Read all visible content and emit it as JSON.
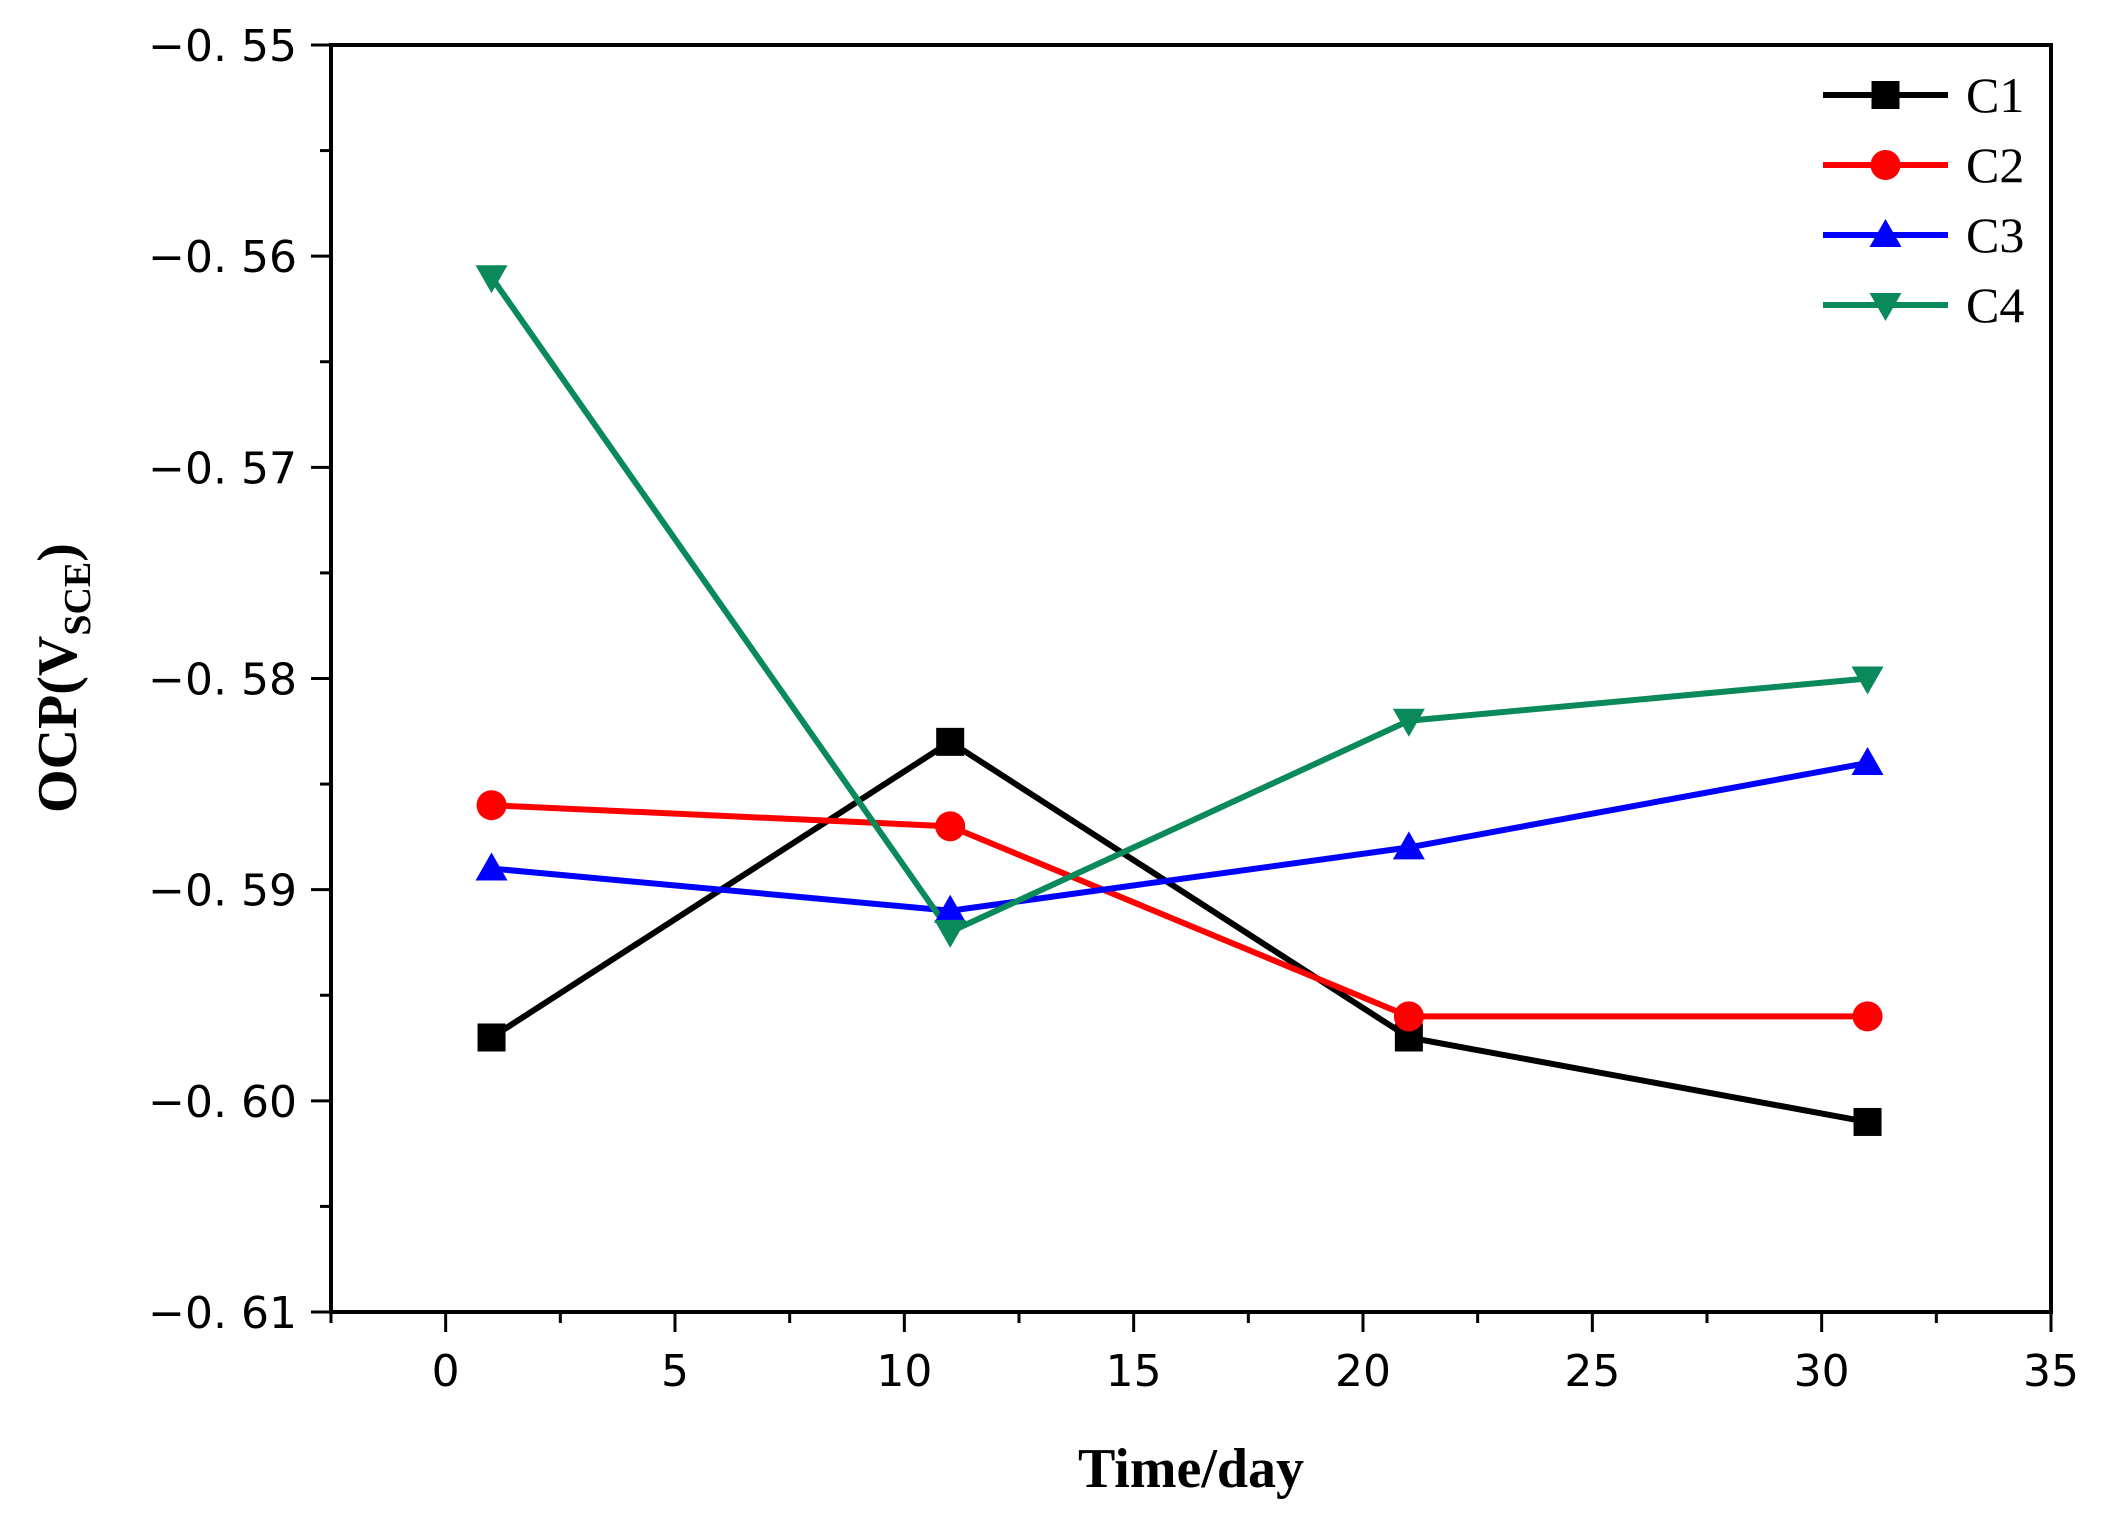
{
  "chart_data": {
    "type": "line",
    "title": "",
    "xlabel": "Time/day",
    "ylabel": {
      "main": "OCP(V",
      "sub": "SCE",
      "close": ")"
    },
    "xlim": [
      -2.5,
      35
    ],
    "ylim": [
      -0.61,
      -0.55
    ],
    "xticks": [
      0,
      5,
      10,
      15,
      20,
      25,
      30,
      35
    ],
    "yticks": [
      -0.61,
      -0.6,
      -0.59,
      -0.58,
      -0.57,
      -0.56,
      -0.55
    ],
    "ytick_labels": [
      "−0. 61",
      "−0. 60",
      "−0. 59",
      "−0. 58",
      "−0. 57",
      "−0. 56",
      "−0. 55"
    ],
    "x": [
      1,
      11,
      21,
      31
    ],
    "series": [
      {
        "name": "C1",
        "color": "#000000",
        "marker": "square",
        "values": [
          -0.597,
          -0.583,
          -0.597,
          -0.601
        ]
      },
      {
        "name": "C2",
        "color": "#ff0000",
        "marker": "circle",
        "values": [
          -0.586,
          -0.587,
          -0.596,
          -0.596
        ]
      },
      {
        "name": "C3",
        "color": "#0000ff",
        "marker": "triangle-up",
        "values": [
          -0.589,
          -0.591,
          -0.588,
          -0.584
        ]
      },
      {
        "name": "C4",
        "color": "#0a8a5a",
        "marker": "triangle-down",
        "values": [
          -0.561,
          -0.592,
          -0.582,
          -0.58
        ]
      }
    ],
    "legend_position": "top-right",
    "grid": false
  }
}
